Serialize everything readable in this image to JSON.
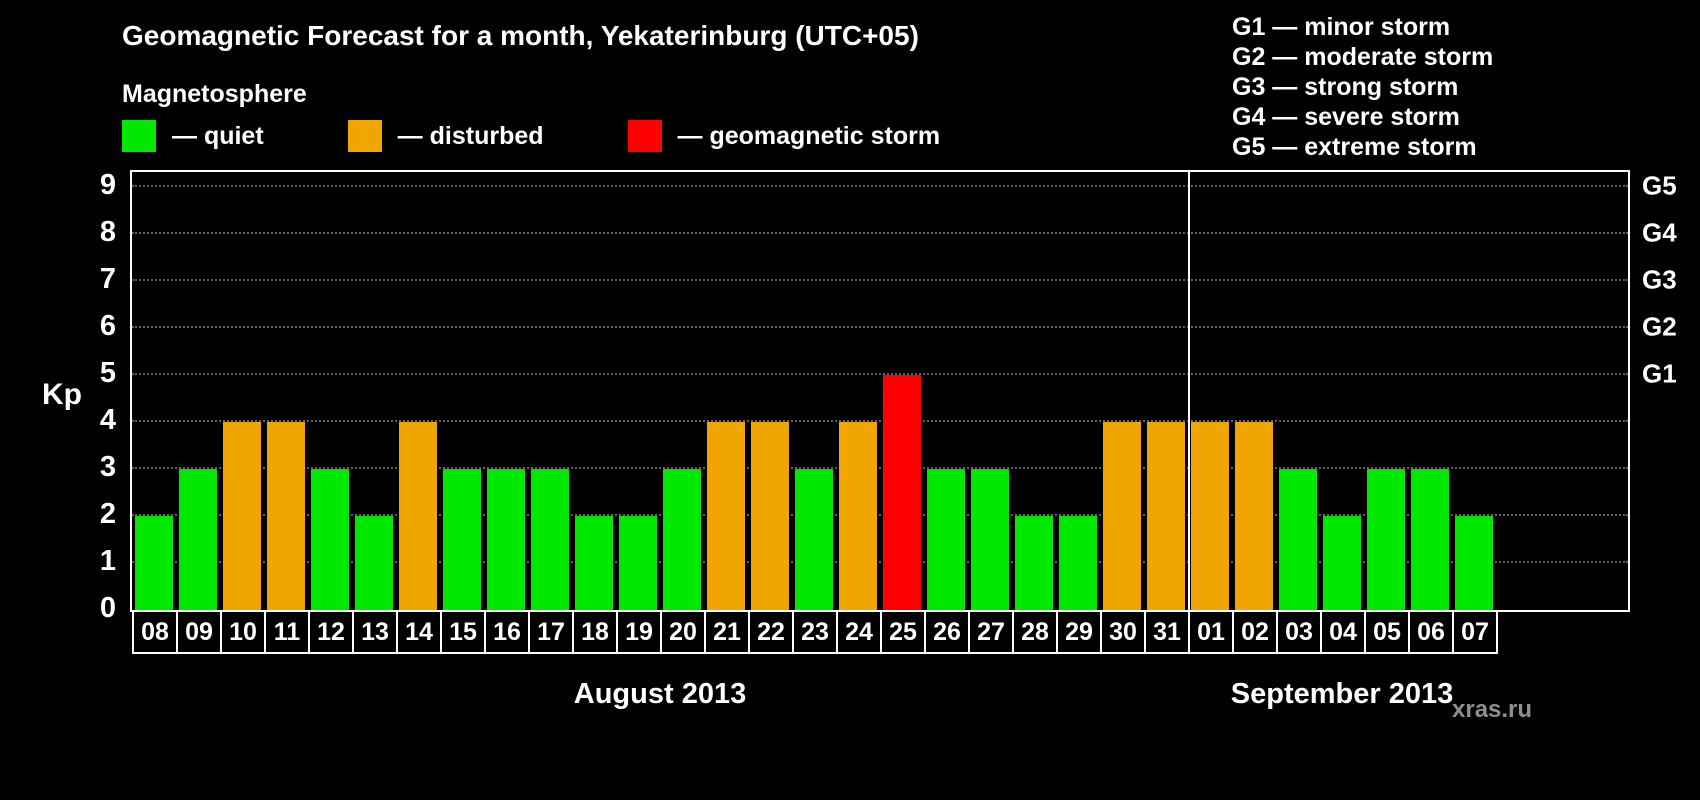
{
  "title": "Geomagnetic Forecast for a month, Yekaterinburg (UTC+05)",
  "legend": {
    "heading": "Magnetosphere",
    "items": [
      {
        "name": "quiet",
        "label": "— quiet",
        "color": "#00e800"
      },
      {
        "name": "disturbed",
        "label": "— disturbed",
        "color": "#f0a500"
      },
      {
        "name": "storm",
        "label": "— geomagnetic storm",
        "color": "#ff0000"
      }
    ]
  },
  "g_scale_legend": [
    "G1 — minor storm",
    "G2 — moderate storm",
    "G3 — strong storm",
    "G4 — severe storm",
    "G5 — extreme storm"
  ],
  "watermark": "xras.ru",
  "chart_data": {
    "type": "bar",
    "title": "Geomagnetic Forecast for a month, Yekaterinburg (UTC+05)",
    "ylabel": "Kp",
    "ylim": [
      0,
      9
    ],
    "yticks": [
      0,
      1,
      2,
      3,
      4,
      5,
      6,
      7,
      8,
      9
    ],
    "grid": "horizontal-dotted",
    "legend_position": "top",
    "right_axis": [
      {
        "label": "G1",
        "kp": 5
      },
      {
        "label": "G2",
        "kp": 6
      },
      {
        "label": "G3",
        "kp": 7
      },
      {
        "label": "G4",
        "kp": 8
      },
      {
        "label": "G5",
        "kp": 9
      }
    ],
    "months": [
      {
        "label": "August 2013",
        "days": 24
      },
      {
        "label": "September 2013",
        "days": 7
      }
    ],
    "categories": [
      "08",
      "09",
      "10",
      "11",
      "12",
      "13",
      "14",
      "15",
      "16",
      "17",
      "18",
      "19",
      "20",
      "21",
      "22",
      "23",
      "24",
      "25",
      "26",
      "27",
      "28",
      "29",
      "30",
      "31",
      "01",
      "02",
      "03",
      "04",
      "05",
      "06",
      "07"
    ],
    "values": [
      2,
      3,
      4,
      4,
      3,
      2,
      4,
      3,
      3,
      3,
      2,
      2,
      3,
      4,
      4,
      3,
      4,
      5,
      3,
      3,
      2,
      2,
      4,
      4,
      4,
      4,
      3,
      2,
      3,
      3,
      2
    ],
    "statuses": [
      "quiet",
      "quiet",
      "disturbed",
      "disturbed",
      "quiet",
      "quiet",
      "disturbed",
      "quiet",
      "quiet",
      "quiet",
      "quiet",
      "quiet",
      "quiet",
      "disturbed",
      "disturbed",
      "quiet",
      "disturbed",
      "storm",
      "quiet",
      "quiet",
      "quiet",
      "quiet",
      "disturbed",
      "disturbed",
      "disturbed",
      "disturbed",
      "quiet",
      "quiet",
      "quiet",
      "quiet",
      "quiet"
    ],
    "status_colors": {
      "quiet": "#00e800",
      "disturbed": "#f0a500",
      "storm": "#ff0000"
    }
  }
}
